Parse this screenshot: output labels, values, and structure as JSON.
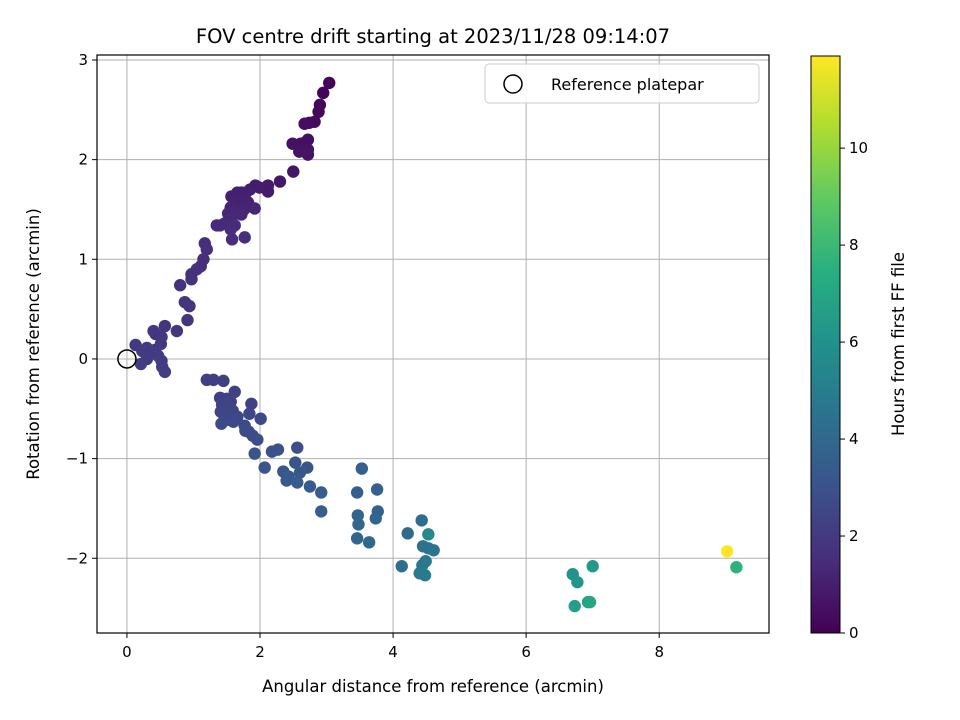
{
  "chart_data": {
    "type": "scatter",
    "title": "FOV centre drift starting at 2023/11/28 09:14:07",
    "xlabel": "Angular distance from reference (arcmin)",
    "ylabel": "Rotation from reference (arcmin)",
    "xlim": [
      -0.45,
      9.65
    ],
    "ylim": [
      -2.75,
      3.05
    ],
    "xticks": [
      0,
      2,
      4,
      6,
      8
    ],
    "yticks": [
      -2,
      -1,
      0,
      1,
      2,
      3
    ],
    "grid": true,
    "legend": {
      "position": "upper-right",
      "entries": [
        {
          "label": "Reference platepar",
          "marker": "open-circle"
        }
      ]
    },
    "reference_point": {
      "x": 0,
      "y": 0
    },
    "colorbar": {
      "label": "Hours from first FF file",
      "range": [
        0,
        11.9
      ],
      "ticks": [
        0,
        2,
        4,
        6,
        8,
        10
      ],
      "colormap": "viridis"
    },
    "points": [
      {
        "x": 3.04,
        "y": 2.77,
        "t": 0.1
      },
      {
        "x": 2.95,
        "y": 2.67,
        "t": 0.15
      },
      {
        "x": 2.9,
        "y": 2.55,
        "t": 0.2
      },
      {
        "x": 2.88,
        "y": 2.48,
        "t": 0.25
      },
      {
        "x": 2.82,
        "y": 2.38,
        "t": 0.3
      },
      {
        "x": 2.74,
        "y": 2.37,
        "t": 0.35
      },
      {
        "x": 2.67,
        "y": 2.36,
        "t": 0.4
      },
      {
        "x": 2.72,
        "y": 2.2,
        "t": 0.45
      },
      {
        "x": 2.67,
        "y": 2.17,
        "t": 0.5
      },
      {
        "x": 2.61,
        "y": 2.16,
        "t": 0.5
      },
      {
        "x": 2.49,
        "y": 2.16,
        "t": 0.55
      },
      {
        "x": 2.72,
        "y": 2.1,
        "t": 0.6
      },
      {
        "x": 2.59,
        "y": 2.08,
        "t": 0.6
      },
      {
        "x": 2.72,
        "y": 2.05,
        "t": 0.65
      },
      {
        "x": 2.5,
        "y": 1.88,
        "t": 0.7
      },
      {
        "x": 2.3,
        "y": 1.78,
        "t": 0.75
      },
      {
        "x": 2.12,
        "y": 1.74,
        "t": 0.8
      },
      {
        "x": 2.12,
        "y": 1.68,
        "t": 0.85
      },
      {
        "x": 1.99,
        "y": 1.72,
        "t": 0.9
      },
      {
        "x": 1.93,
        "y": 1.74,
        "t": 0.9
      },
      {
        "x": 1.85,
        "y": 1.7,
        "t": 0.95
      },
      {
        "x": 1.79,
        "y": 1.67,
        "t": 1.0
      },
      {
        "x": 1.72,
        "y": 1.67,
        "t": 1.0
      },
      {
        "x": 1.66,
        "y": 1.67,
        "t": 1.05
      },
      {
        "x": 1.57,
        "y": 1.63,
        "t": 1.05
      },
      {
        "x": 1.66,
        "y": 1.6,
        "t": 1.1
      },
      {
        "x": 1.77,
        "y": 1.59,
        "t": 1.1
      },
      {
        "x": 1.82,
        "y": 1.57,
        "t": 1.1
      },
      {
        "x": 1.72,
        "y": 1.55,
        "t": 1.15
      },
      {
        "x": 1.63,
        "y": 1.54,
        "t": 1.15
      },
      {
        "x": 1.56,
        "y": 1.52,
        "t": 1.2
      },
      {
        "x": 1.67,
        "y": 1.48,
        "t": 1.2
      },
      {
        "x": 1.76,
        "y": 1.5,
        "t": 1.2
      },
      {
        "x": 1.92,
        "y": 1.51,
        "t": 1.25
      },
      {
        "x": 1.6,
        "y": 1.47,
        "t": 1.25
      },
      {
        "x": 1.72,
        "y": 1.45,
        "t": 1.3
      },
      {
        "x": 1.52,
        "y": 1.46,
        "t": 1.3
      },
      {
        "x": 1.57,
        "y": 1.41,
        "t": 1.35
      },
      {
        "x": 1.47,
        "y": 1.36,
        "t": 1.35
      },
      {
        "x": 1.4,
        "y": 1.34,
        "t": 1.4
      },
      {
        "x": 1.35,
        "y": 1.34,
        "t": 1.4
      },
      {
        "x": 1.62,
        "y": 1.34,
        "t": 1.45
      },
      {
        "x": 1.56,
        "y": 1.3,
        "t": 1.45
      },
      {
        "x": 1.58,
        "y": 1.2,
        "t": 1.5
      },
      {
        "x": 1.77,
        "y": 1.22,
        "t": 1.5
      },
      {
        "x": 1.17,
        "y": 1.16,
        "t": 1.55
      },
      {
        "x": 1.2,
        "y": 1.1,
        "t": 1.55
      },
      {
        "x": 1.15,
        "y": 1.0,
        "t": 1.6
      },
      {
        "x": 1.11,
        "y": 0.93,
        "t": 1.6
      },
      {
        "x": 1.05,
        "y": 0.9,
        "t": 1.65
      },
      {
        "x": 0.97,
        "y": 0.85,
        "t": 1.65
      },
      {
        "x": 0.97,
        "y": 0.8,
        "t": 1.7
      },
      {
        "x": 0.8,
        "y": 0.74,
        "t": 1.7
      },
      {
        "x": 0.87,
        "y": 0.57,
        "t": 1.75
      },
      {
        "x": 0.94,
        "y": 0.53,
        "t": 1.75
      },
      {
        "x": 0.91,
        "y": 0.39,
        "t": 1.8
      },
      {
        "x": 0.57,
        "y": 0.33,
        "t": 1.8
      },
      {
        "x": 0.75,
        "y": 0.28,
        "t": 1.85
      },
      {
        "x": 0.4,
        "y": 0.28,
        "t": 1.85
      },
      {
        "x": 0.43,
        "y": 0.25,
        "t": 1.9
      },
      {
        "x": 0.52,
        "y": 0.22,
        "t": 1.9
      },
      {
        "x": 0.51,
        "y": 0.15,
        "t": 1.95
      },
      {
        "x": 0.13,
        "y": 0.14,
        "t": 1.95
      },
      {
        "x": 0.3,
        "y": 0.11,
        "t": 2.0
      },
      {
        "x": 0.42,
        "y": 0.09,
        "t": 2.0
      },
      {
        "x": 0.23,
        "y": 0.08,
        "t": 2.0
      },
      {
        "x": 0.47,
        "y": 0.03,
        "t": 2.05
      },
      {
        "x": 0.3,
        "y": 0.0,
        "t": 2.05
      },
      {
        "x": 0.52,
        "y": -0.02,
        "t": 2.1
      },
      {
        "x": 0.21,
        "y": -0.05,
        "t": 2.1
      },
      {
        "x": 0.53,
        "y": -0.08,
        "t": 2.15
      },
      {
        "x": 0.57,
        "y": -0.13,
        "t": 2.15
      },
      {
        "x": 1.2,
        "y": -0.21,
        "t": 2.2
      },
      {
        "x": 1.3,
        "y": -0.21,
        "t": 2.2
      },
      {
        "x": 1.45,
        "y": -0.22,
        "t": 2.25
      },
      {
        "x": 1.62,
        "y": -0.33,
        "t": 2.25
      },
      {
        "x": 1.4,
        "y": -0.39,
        "t": 2.3
      },
      {
        "x": 1.5,
        "y": -0.4,
        "t": 2.3
      },
      {
        "x": 1.56,
        "y": -0.43,
        "t": 2.35
      },
      {
        "x": 1.87,
        "y": -0.45,
        "t": 2.35
      },
      {
        "x": 1.43,
        "y": -0.46,
        "t": 2.4
      },
      {
        "x": 1.52,
        "y": -0.48,
        "t": 2.4
      },
      {
        "x": 1.41,
        "y": -0.53,
        "t": 2.45
      },
      {
        "x": 1.59,
        "y": -0.52,
        "t": 2.45
      },
      {
        "x": 1.84,
        "y": -0.55,
        "t": 2.5
      },
      {
        "x": 1.47,
        "y": -0.58,
        "t": 2.5
      },
      {
        "x": 1.66,
        "y": -0.58,
        "t": 2.55
      },
      {
        "x": 1.53,
        "y": -0.61,
        "t": 2.55
      },
      {
        "x": 2.01,
        "y": -0.6,
        "t": 2.6
      },
      {
        "x": 1.6,
        "y": -0.63,
        "t": 2.6
      },
      {
        "x": 1.42,
        "y": -0.65,
        "t": 2.65
      },
      {
        "x": 1.77,
        "y": -0.67,
        "t": 2.65
      },
      {
        "x": 1.78,
        "y": -0.72,
        "t": 2.7
      },
      {
        "x": 1.83,
        "y": -0.73,
        "t": 2.7
      },
      {
        "x": 1.89,
        "y": -0.77,
        "t": 2.75
      },
      {
        "x": 1.96,
        "y": -0.81,
        "t": 2.8
      },
      {
        "x": 2.56,
        "y": -0.89,
        "t": 2.85
      },
      {
        "x": 2.27,
        "y": -0.91,
        "t": 2.9
      },
      {
        "x": 2.18,
        "y": -0.93,
        "t": 2.95
      },
      {
        "x": 1.92,
        "y": -0.95,
        "t": 3.0
      },
      {
        "x": 2.53,
        "y": -1.04,
        "t": 3.05
      },
      {
        "x": 2.07,
        "y": -1.09,
        "t": 3.1
      },
      {
        "x": 2.71,
        "y": -1.09,
        "t": 3.15
      },
      {
        "x": 2.35,
        "y": -1.13,
        "t": 3.2
      },
      {
        "x": 2.6,
        "y": -1.14,
        "t": 3.25
      },
      {
        "x": 2.43,
        "y": -1.18,
        "t": 3.3
      },
      {
        "x": 2.4,
        "y": -1.22,
        "t": 3.35
      },
      {
        "x": 2.56,
        "y": -1.24,
        "t": 3.4
      },
      {
        "x": 2.75,
        "y": -1.28,
        "t": 3.45
      },
      {
        "x": 2.92,
        "y": -1.34,
        "t": 3.5
      },
      {
        "x": 2.92,
        "y": -1.53,
        "t": 3.55
      },
      {
        "x": 3.53,
        "y": -1.1,
        "t": 3.6
      },
      {
        "x": 3.46,
        "y": -1.34,
        "t": 3.65
      },
      {
        "x": 3.76,
        "y": -1.31,
        "t": 3.7
      },
      {
        "x": 3.77,
        "y": -1.53,
        "t": 3.75
      },
      {
        "x": 3.47,
        "y": -1.57,
        "t": 3.8
      },
      {
        "x": 3.74,
        "y": -1.6,
        "t": 3.85
      },
      {
        "x": 3.48,
        "y": -1.66,
        "t": 3.9
      },
      {
        "x": 3.46,
        "y": -1.8,
        "t": 3.95
      },
      {
        "x": 3.64,
        "y": -1.84,
        "t": 4.0
      },
      {
        "x": 4.22,
        "y": -1.75,
        "t": 4.1
      },
      {
        "x": 4.43,
        "y": -1.62,
        "t": 4.2
      },
      {
        "x": 4.53,
        "y": -1.76,
        "t": 5.5
      },
      {
        "x": 4.45,
        "y": -1.88,
        "t": 4.4
      },
      {
        "x": 4.53,
        "y": -1.9,
        "t": 4.5
      },
      {
        "x": 4.61,
        "y": -1.92,
        "t": 4.6
      },
      {
        "x": 4.49,
        "y": -2.03,
        "t": 4.7
      },
      {
        "x": 4.44,
        "y": -2.07,
        "t": 4.75
      },
      {
        "x": 4.13,
        "y": -2.08,
        "t": 4.3
      },
      {
        "x": 4.4,
        "y": -2.15,
        "t": 4.8
      },
      {
        "x": 4.48,
        "y": -2.17,
        "t": 4.85
      },
      {
        "x": 6.7,
        "y": -2.16,
        "t": 6.0
      },
      {
        "x": 6.77,
        "y": -2.24,
        "t": 6.2
      },
      {
        "x": 7.0,
        "y": -2.08,
        "t": 6.4
      },
      {
        "x": 6.93,
        "y": -2.44,
        "t": 6.8
      },
      {
        "x": 6.96,
        "y": -2.44,
        "t": 7.0
      },
      {
        "x": 6.73,
        "y": -2.48,
        "t": 6.6
      },
      {
        "x": 9.02,
        "y": -1.93,
        "t": 11.9
      },
      {
        "x": 9.16,
        "y": -2.09,
        "t": 7.6
      }
    ]
  }
}
